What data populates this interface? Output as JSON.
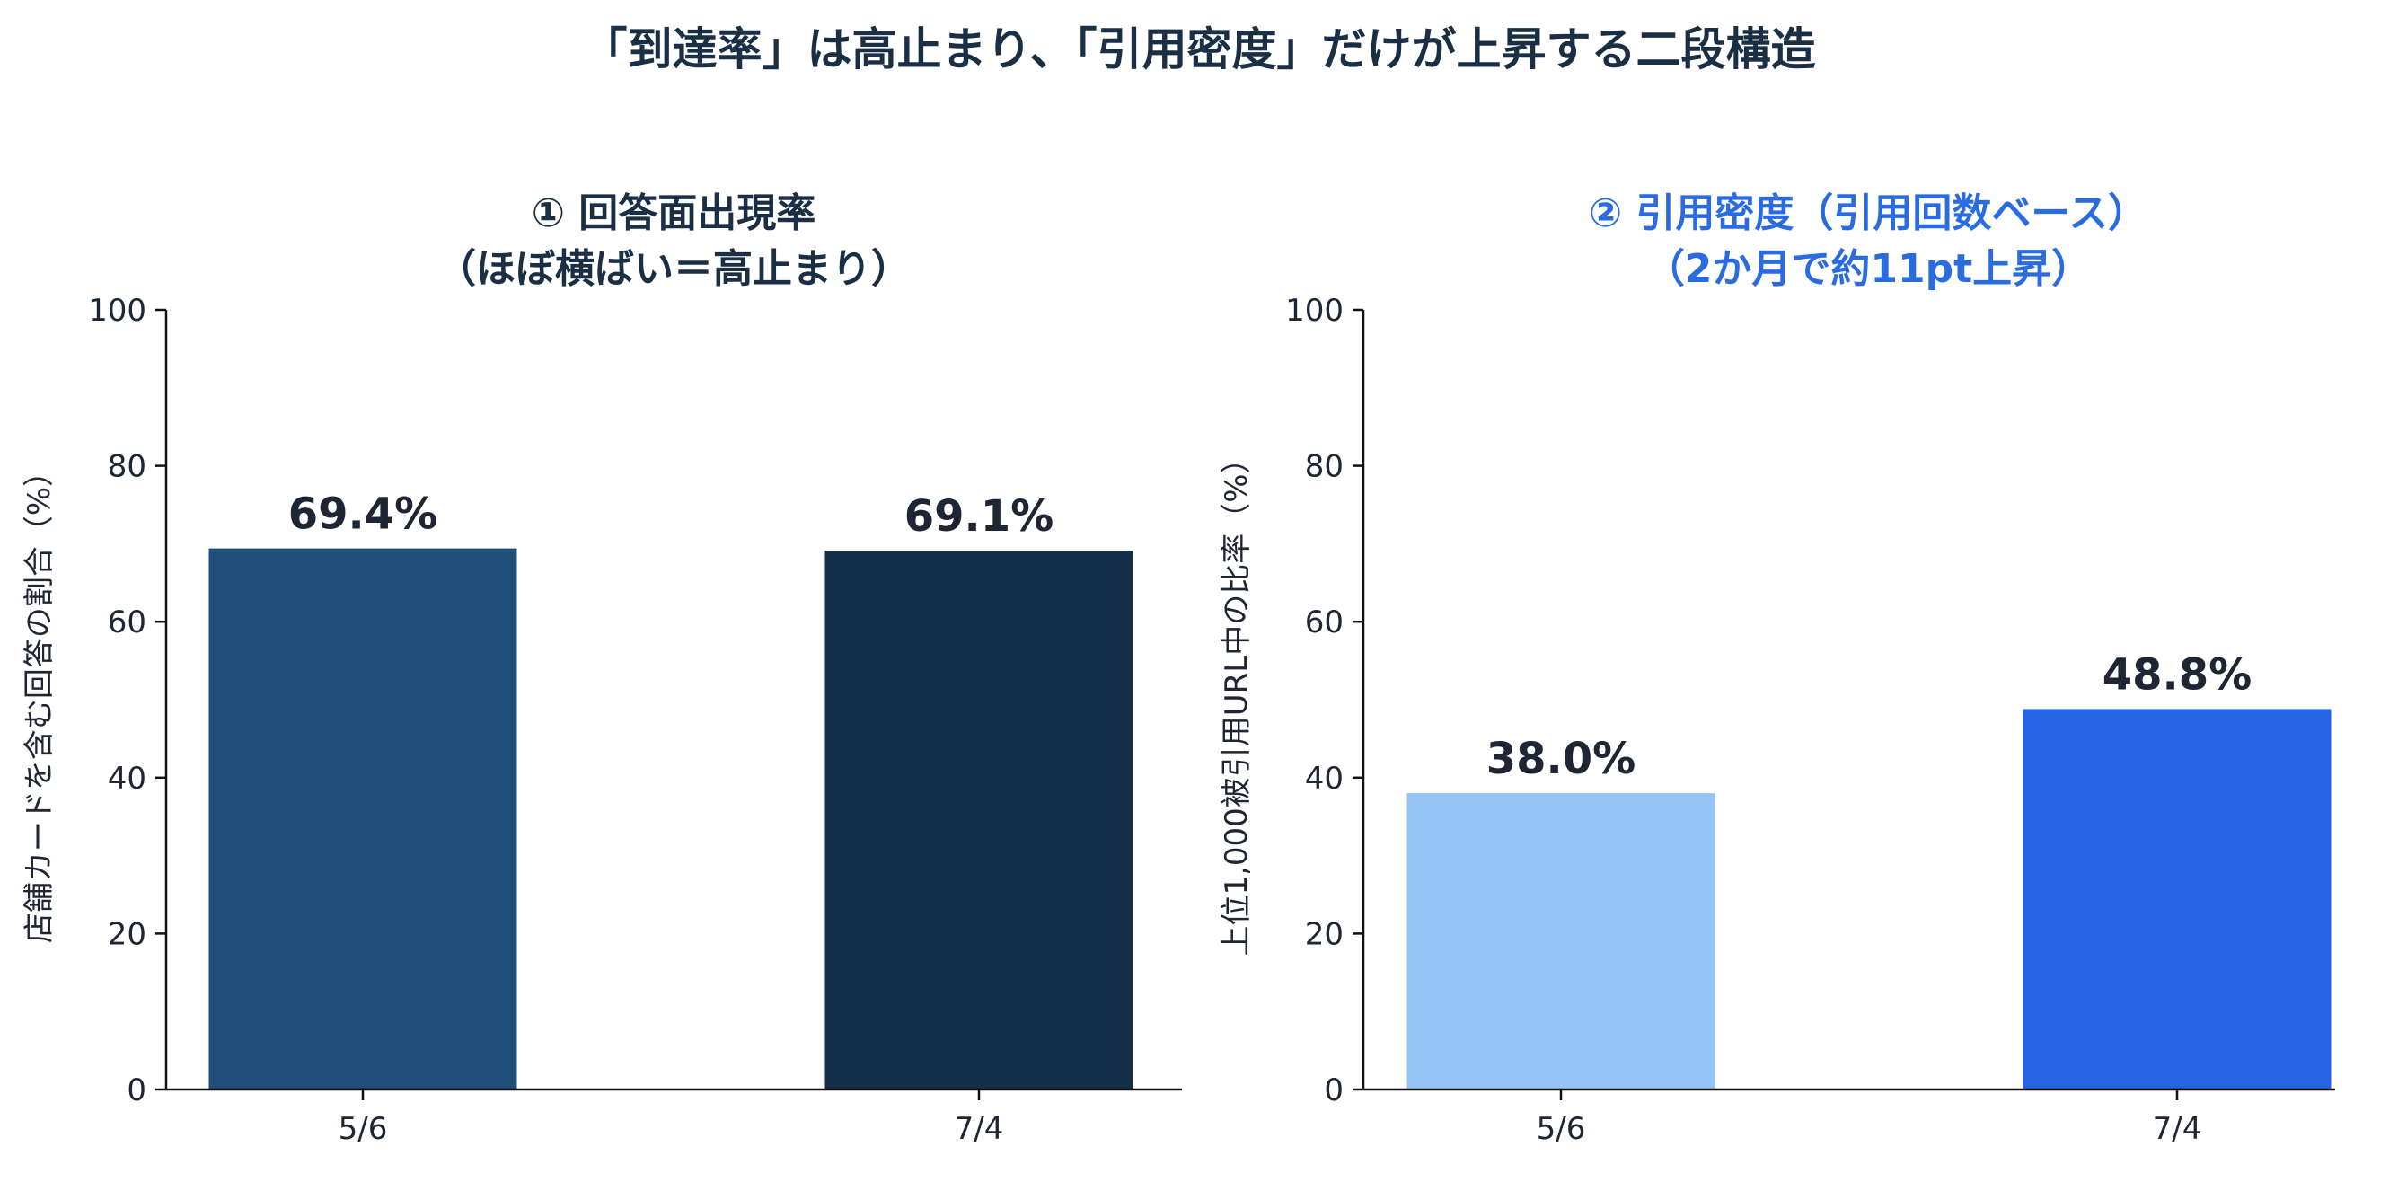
{
  "title": "「到達率」は高止まり、「引用密度」だけが上昇する二段構造",
  "colors": {
    "title": "#1a2e44",
    "axis": "#111111",
    "label": "#1f2633"
  },
  "chart_data": [
    {
      "type": "bar",
      "title_lines": [
        "① 回答面出現率",
        "（ほぼ横ばい＝高止まり）"
      ],
      "title_color": "#1a2e44",
      "ylabel": "店舗カードを含む回答の割合（%）",
      "ylim": [
        0,
        100
      ],
      "yticks": [
        "0",
        "20",
        "40",
        "60",
        "80",
        "100"
      ],
      "categories": [
        "5/6",
        "7/4"
      ],
      "values": [
        69.4,
        69.1
      ],
      "value_labels": [
        "69.4%",
        "69.1%"
      ],
      "bar_colors": [
        "#1f4e79",
        "#152e48"
      ]
    },
    {
      "type": "bar",
      "title_lines": [
        "② 引用密度（引用回数ベース）",
        "（2か月で約11pt上昇）"
      ],
      "title_color": "#2b6be0",
      "ylabel": "上位1,000被引用URL中の比率（%）",
      "ylim": [
        0,
        100
      ],
      "yticks": [
        "0",
        "20",
        "40",
        "60",
        "80",
        "100"
      ],
      "categories": [
        "5/6",
        "7/4"
      ],
      "values": [
        38.0,
        48.8
      ],
      "value_labels": [
        "38.0%",
        "48.8%"
      ],
      "bar_colors": [
        "#94c4f8",
        "#2563e6"
      ]
    }
  ]
}
